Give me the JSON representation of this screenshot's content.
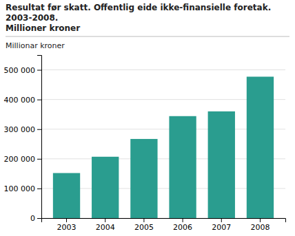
{
  "chart_data": {
    "type": "bar",
    "title": "Resultat før skatt. Offentlig eide ikke-finansielle foretak. 2003-2008.",
    "subtitle": "Millioner kroner",
    "y_label": "Millionar kroner",
    "categories": [
      "2003",
      "2004",
      "2005",
      "2006",
      "2007",
      "2008"
    ],
    "values": [
      152000,
      207000,
      267000,
      344000,
      360000,
      477000
    ],
    "color": "#2a9d8f",
    "ylim": [
      0,
      550000
    ],
    "yticks": [
      0,
      {
        "value": 100000,
        "label": "100 000"
      },
      {
        "value": 200000,
        "label": "200 000"
      },
      {
        "value": 300000,
        "label": "300 000"
      },
      {
        "value": 400000,
        "label": "400 000"
      },
      {
        "value": 500000,
        "label": "500 000"
      }
    ],
    "grid": true
  }
}
